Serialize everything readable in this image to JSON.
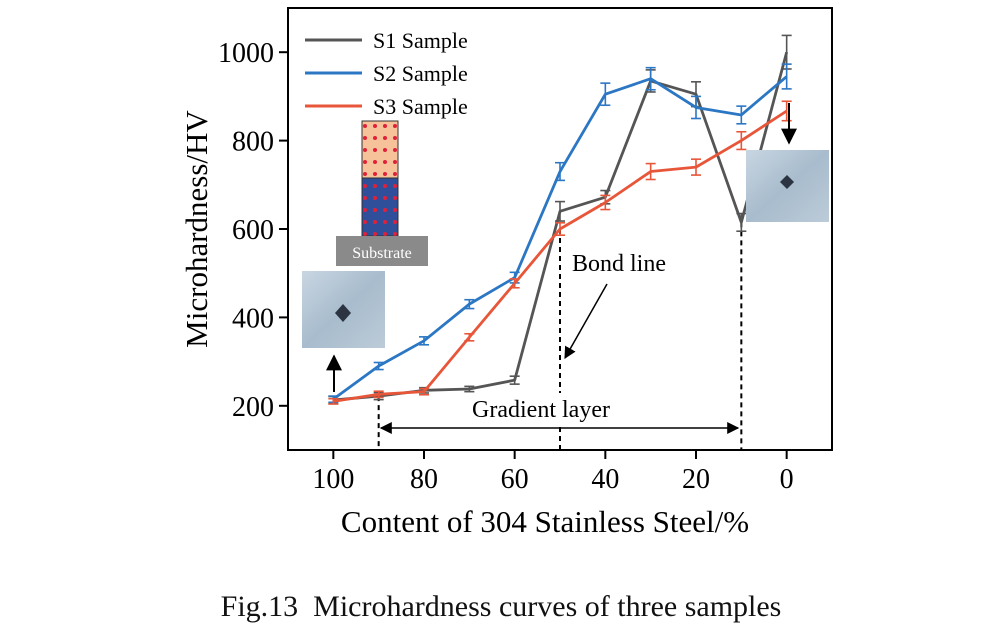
{
  "chart_data": {
    "type": "line",
    "xlabel": "Content of 304 Stainless Steel/%",
    "ylabel": "Microhardness/HV",
    "xlim": [
      110,
      -10
    ],
    "ylim": [
      100,
      1100
    ],
    "x_ticks": [
      "100",
      "80",
      "60",
      "40",
      "20",
      "0"
    ],
    "y_ticks": [
      "200",
      "400",
      "600",
      "800",
      "1000"
    ],
    "x": [
      100,
      90,
      80,
      70,
      60,
      50,
      40,
      30,
      20,
      10,
      0
    ],
    "series": [
      {
        "name": "S1 Sample",
        "color": "#555555",
        "values": [
          213,
          222,
          235,
          238,
          258,
          640,
          672,
          935,
          905,
          615,
          1000
        ],
        "errors": [
          8,
          8,
          6,
          6,
          9,
          22,
          15,
          25,
          28,
          20,
          38
        ]
      },
      {
        "name": "S2 Sample",
        "color": "#2b77c4",
        "values": [
          215,
          290,
          347,
          430,
          490,
          730,
          905,
          940,
          875,
          858,
          945
        ],
        "errors": [
          7,
          8,
          9,
          10,
          12,
          20,
          25,
          25,
          25,
          20,
          28
        ]
      },
      {
        "name": "S3 Sample",
        "color": "#e8563a",
        "values": [
          210,
          226,
          232,
          355,
          477,
          600,
          660,
          730,
          740,
          800,
          867
        ],
        "errors": [
          6,
          7,
          7,
          8,
          10,
          14,
          16,
          18,
          18,
          20,
          22
        ]
      }
    ],
    "legend_position": "top-left",
    "annotations": {
      "bond_line": "Bond line",
      "gradient_layer": "Gradient layer",
      "substrate": "Substrate"
    },
    "vertical_markers": [
      90,
      50,
      10
    ]
  },
  "caption": {
    "label": "Fig.13",
    "text": "Microhardness curves of three samples"
  }
}
